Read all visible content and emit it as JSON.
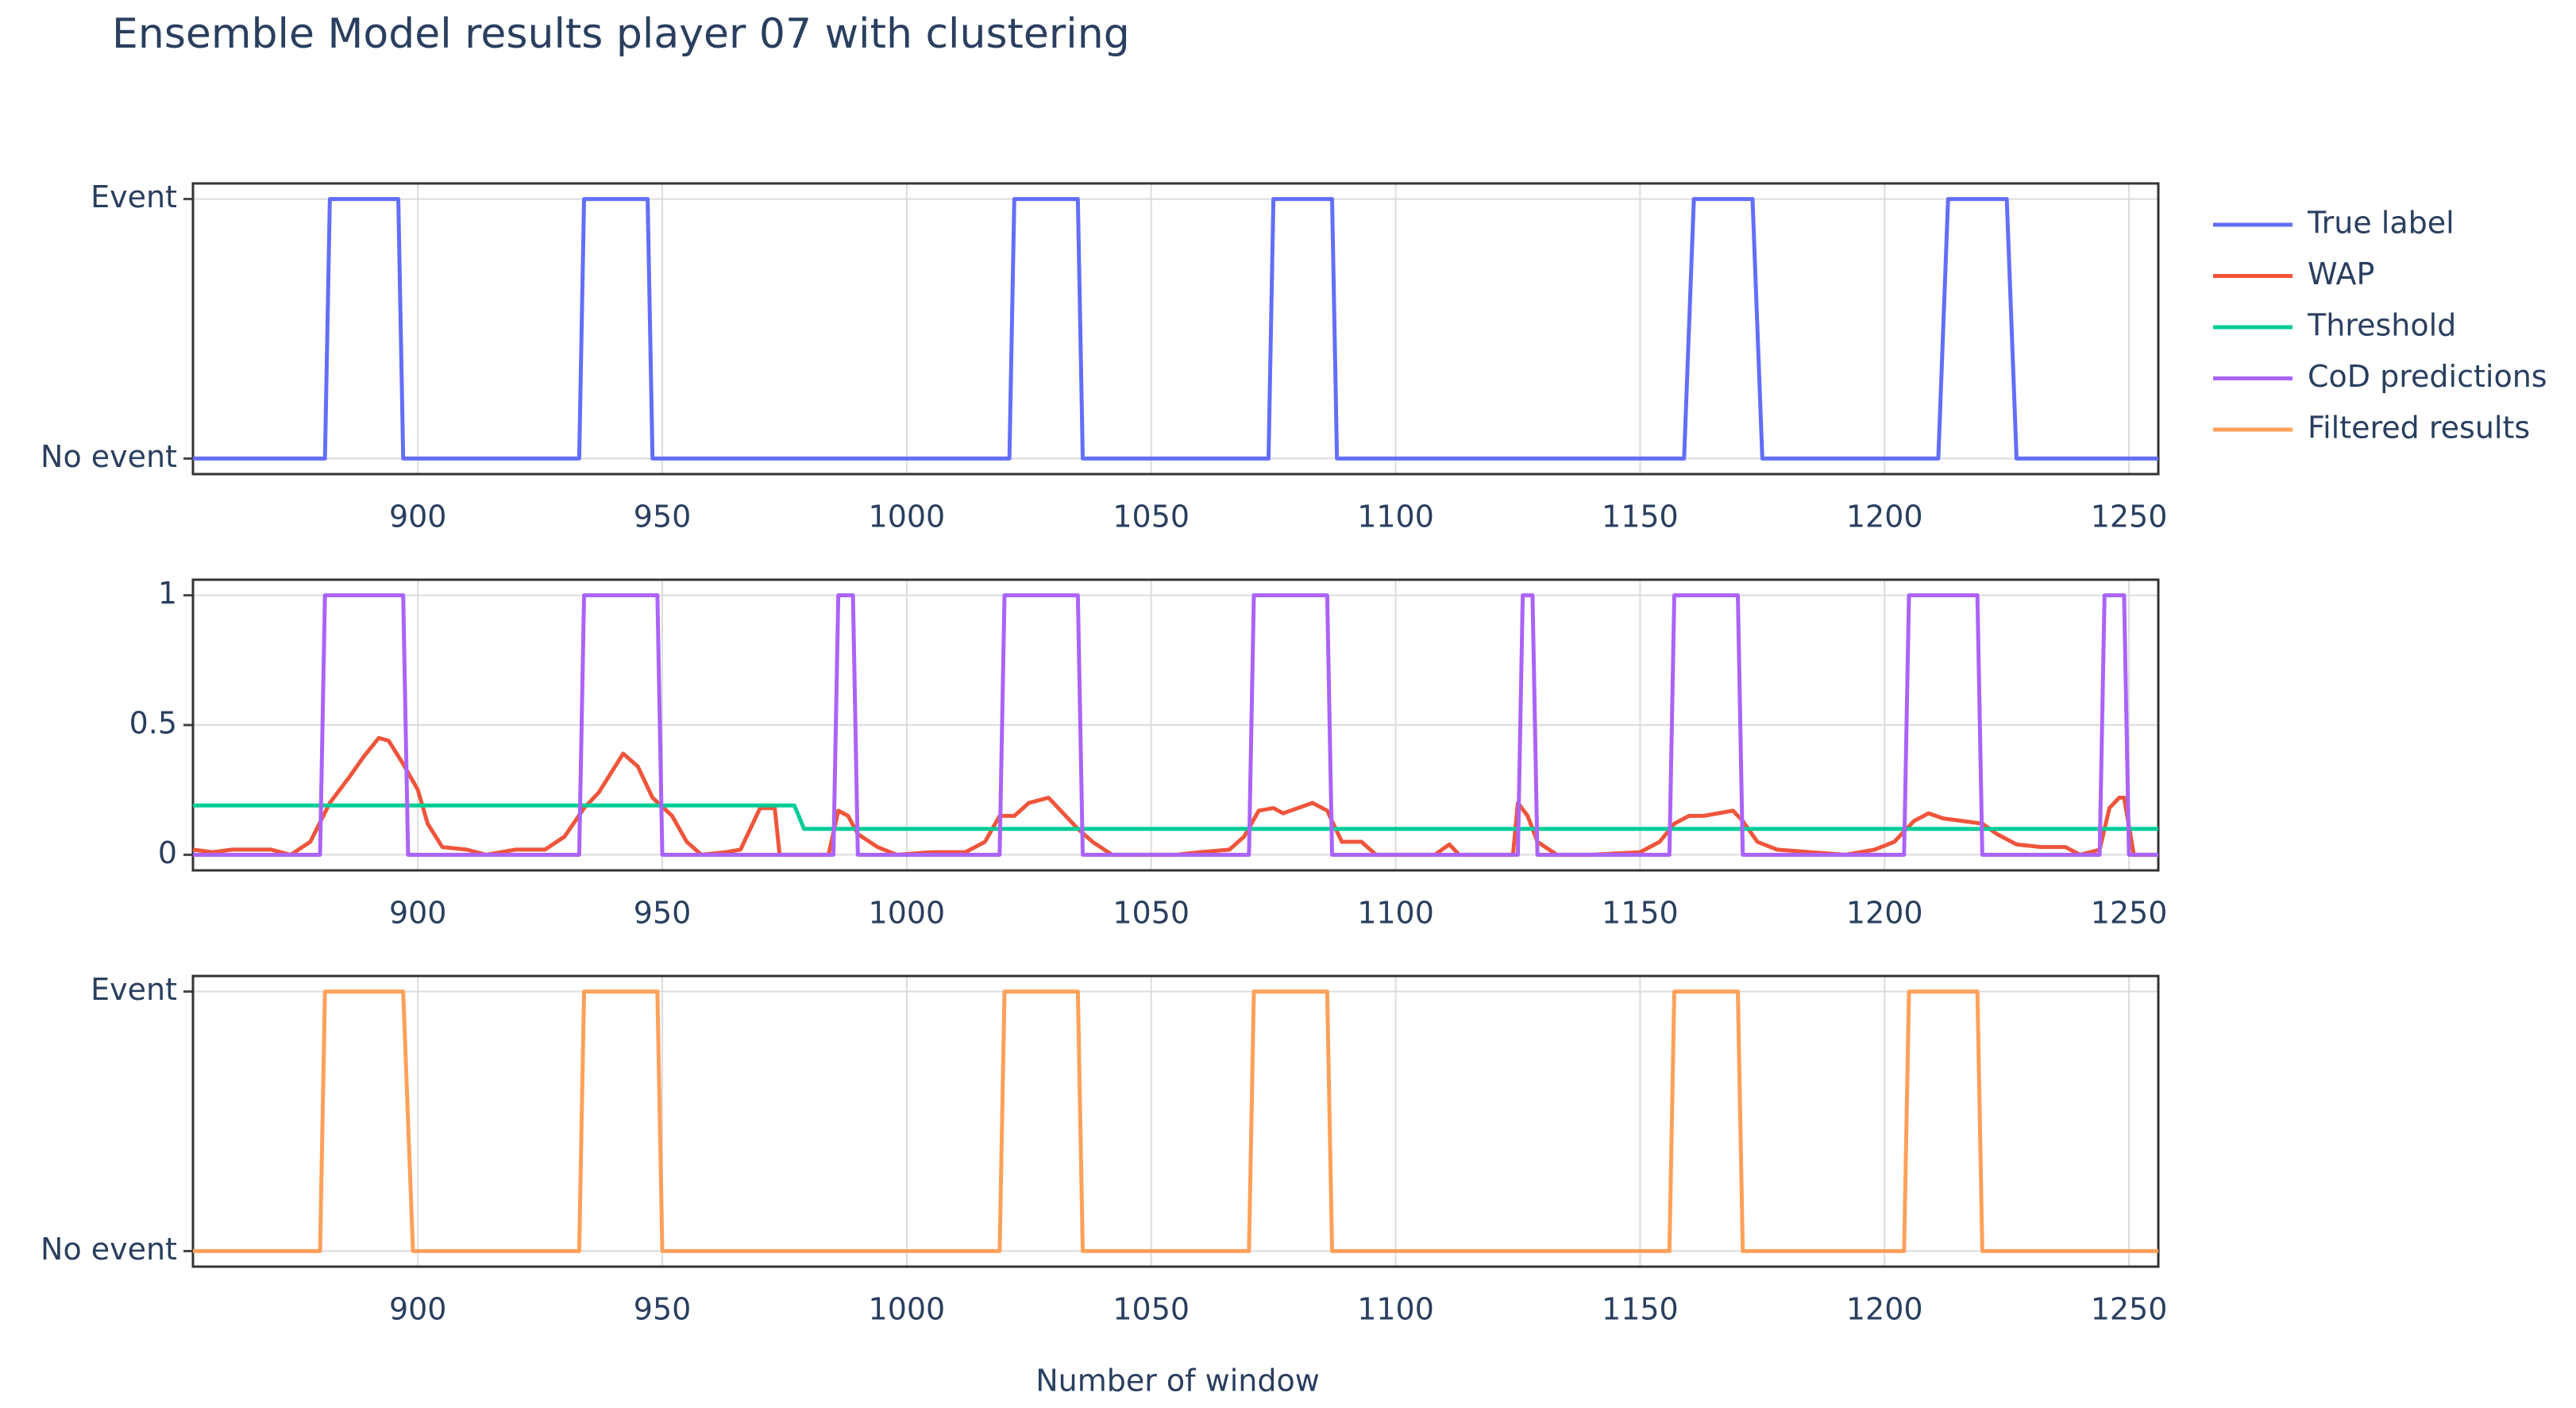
{
  "title": "Ensemble Model results player 07 with clustering",
  "x_label": "Number of window",
  "legend_position": "right",
  "chart_data": [
    {
      "type": "line",
      "xlim": [
        854,
        1256
      ],
      "xticks": [
        900,
        950,
        1000,
        1050,
        1100,
        1150,
        1200,
        1250
      ],
      "ylim": [
        -0.06,
        1.06
      ],
      "yticks": [
        {
          "value": 0,
          "label": "No event"
        },
        {
          "value": 1,
          "label": "Event"
        }
      ],
      "grid": true,
      "series": [
        {
          "name": "True label",
          "color": "#636efa",
          "x": [
            854,
            881,
            882,
            896,
            897,
            933,
            934,
            947,
            948,
            1021,
            1022,
            1035,
            1036,
            1074,
            1075,
            1087,
            1088,
            1159,
            1161,
            1173,
            1175,
            1211,
            1213,
            1225,
            1227,
            1256
          ],
          "values": [
            0,
            0,
            1,
            1,
            0,
            0,
            1,
            1,
            0,
            0,
            1,
            1,
            0,
            0,
            1,
            1,
            0,
            0,
            1,
            1,
            0,
            0,
            1,
            1,
            0,
            0
          ]
        }
      ]
    },
    {
      "type": "line",
      "xlim": [
        854,
        1256
      ],
      "xticks": [
        900,
        950,
        1000,
        1050,
        1100,
        1150,
        1200,
        1250
      ],
      "ylim": [
        -0.06,
        1.06
      ],
      "yticks": [
        0,
        0.5,
        1
      ],
      "grid": true,
      "series": [
        {
          "name": "WAP",
          "color": "#ef553b",
          "x": [
            854,
            858,
            862,
            870,
            874,
            878,
            882,
            886,
            889,
            892,
            894,
            897,
            900,
            902,
            905,
            910,
            914,
            920,
            926,
            930,
            934,
            937,
            940,
            942,
            945,
            948,
            952,
            955,
            958,
            963,
            966,
            968,
            970,
            973,
            974,
            984,
            986,
            988,
            990,
            994,
            998,
            1005,
            1012,
            1016,
            1019,
            1022,
            1025,
            1029,
            1032,
            1035,
            1038,
            1042,
            1055,
            1060,
            1066,
            1069,
            1072,
            1075,
            1077,
            1080,
            1083,
            1086,
            1089,
            1093,
            1096,
            1108,
            1111,
            1113,
            1124,
            1125,
            1127,
            1129,
            1133,
            1140,
            1150,
            1154,
            1157,
            1160,
            1163,
            1166,
            1169,
            1171,
            1174,
            1178,
            1185,
            1192,
            1198,
            1202,
            1206,
            1209,
            1212,
            1216,
            1220,
            1223,
            1227,
            1232,
            1237,
            1240,
            1244,
            1246,
            1248,
            1249,
            1251,
            1256
          ],
          "values": [
            0.02,
            0.01,
            0.02,
            0.02,
            0,
            0.05,
            0.2,
            0.3,
            0.38,
            0.45,
            0.44,
            0.35,
            0.25,
            0.12,
            0.03,
            0.02,
            0,
            0.02,
            0.02,
            0.07,
            0.18,
            0.24,
            0.33,
            0.39,
            0.34,
            0.22,
            0.15,
            0.05,
            0,
            0.01,
            0.02,
            0.1,
            0.18,
            0.18,
            0,
            0,
            0.17,
            0.15,
            0.08,
            0.03,
            0,
            0.01,
            0.01,
            0.05,
            0.15,
            0.15,
            0.2,
            0.22,
            0.16,
            0.1,
            0.05,
            0,
            0,
            0.01,
            0.02,
            0.07,
            0.17,
            0.18,
            0.16,
            0.18,
            0.2,
            0.17,
            0.05,
            0.05,
            0,
            0,
            0.04,
            0,
            0,
            0.2,
            0.15,
            0.05,
            0,
            0,
            0.01,
            0.05,
            0.12,
            0.15,
            0.15,
            0.16,
            0.17,
            0.13,
            0.05,
            0.02,
            0.01,
            0,
            0.02,
            0.05,
            0.13,
            0.16,
            0.14,
            0.13,
            0.12,
            0.08,
            0.04,
            0.03,
            0.03,
            0,
            0.02,
            0.18,
            0.22,
            0.22,
            0,
            0
          ]
        },
        {
          "name": "Threshold",
          "color": "#00cc96",
          "x": [
            854,
            977,
            979,
            1256
          ],
          "values": [
            0.19,
            0.19,
            0.1,
            0.1
          ]
        },
        {
          "name": "CoD predictions",
          "color": "#ab63fa",
          "x": [
            854,
            880,
            881,
            897,
            898,
            933,
            934,
            949,
            950,
            985,
            986,
            989,
            990,
            1019,
            1020,
            1035,
            1036,
            1070,
            1071,
            1086,
            1087,
            1125,
            1126,
            1128,
            1129,
            1156,
            1157,
            1170,
            1171,
            1204,
            1205,
            1219,
            1220,
            1244,
            1245,
            1249,
            1250,
            1256
          ],
          "values": [
            0,
            0,
            1,
            1,
            0,
            0,
            1,
            1,
            0,
            0,
            1,
            1,
            0,
            0,
            1,
            1,
            0,
            0,
            1,
            1,
            0,
            0,
            1,
            1,
            0,
            0,
            1,
            1,
            0,
            0,
            1,
            1,
            0,
            0,
            1,
            1,
            0,
            0
          ]
        }
      ]
    },
    {
      "type": "line",
      "xlim": [
        854,
        1256
      ],
      "xticks": [
        900,
        950,
        1000,
        1050,
        1100,
        1150,
        1200,
        1250
      ],
      "ylim": [
        -0.06,
        1.06
      ],
      "yticks": [
        {
          "value": 0,
          "label": "No event"
        },
        {
          "value": 1,
          "label": "Event"
        }
      ],
      "grid": true,
      "series": [
        {
          "name": "Filtered results",
          "color": "#ffa15a",
          "x": [
            854,
            880,
            881,
            897,
            899,
            933,
            934,
            949,
            950,
            1019,
            1020,
            1035,
            1036,
            1070,
            1071,
            1086,
            1087,
            1156,
            1157,
            1170,
            1171,
            1204,
            1205,
            1219,
            1220,
            1256
          ],
          "values": [
            0,
            0,
            1,
            1,
            0,
            0,
            1,
            1,
            0,
            0,
            1,
            1,
            0,
            0,
            1,
            1,
            0,
            0,
            1,
            1,
            0,
            0,
            1,
            1,
            0,
            0
          ]
        }
      ]
    }
  ]
}
